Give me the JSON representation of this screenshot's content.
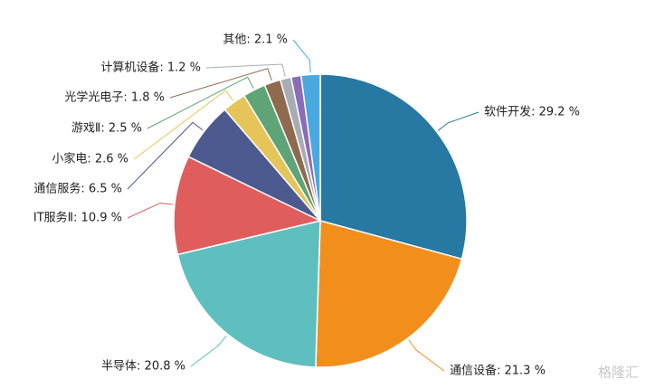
{
  "chart_data": {
    "type": "pie",
    "values": [
      29.2,
      21.3,
      20.8,
      10.9,
      6.5,
      2.6,
      2.5,
      1.8,
      1.2,
      1.1,
      2.1
    ],
    "value_labels": [
      "软件开发: 29.2 %",
      "通信设备: 21.3 %",
      "半导体: 20.8 %",
      "IT服务Ⅱ: 10.9 %",
      "通信服务: 6.5 %",
      "小家电: 2.6 %",
      "游戏Ⅱ: 2.5 %",
      "光学光电子: 1.8 %",
      "计算机设备: 1.2 %",
      null,
      "其他: 2.1 %"
    ],
    "colors": [
      "#2778a3",
      "#f28e1c",
      "#5fbfbf",
      "#e05d5d",
      "#4d5a8f",
      "#e5c55a",
      "#5ea476",
      "#8f6a4f",
      "#a7adb5",
      "#8a6cb8",
      "#4aa8e0"
    ],
    "watermark": "格隆汇"
  }
}
